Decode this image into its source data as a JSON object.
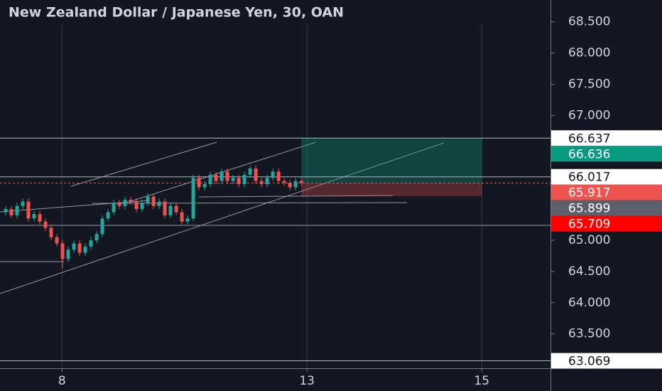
{
  "chart_data": {
    "type": "candlestick",
    "title": "New Zealand Dollar / Japanese Yen, 30, OAN",
    "x": [
      1,
      2,
      3,
      4,
      5,
      6,
      7,
      8,
      9,
      10,
      11,
      12,
      13,
      14,
      15,
      16,
      17,
      18,
      19,
      20,
      21,
      22,
      23,
      24,
      25,
      26,
      27,
      28,
      29,
      30,
      31,
      32,
      33,
      34,
      35,
      36,
      37,
      38,
      39,
      40,
      41,
      42,
      43,
      44,
      45,
      46,
      47,
      48,
      49,
      50,
      51,
      52,
      53
    ],
    "open": [
      65.45,
      65.5,
      65.4,
      65.55,
      65.62,
      65.35,
      65.42,
      65.3,
      65.2,
      65.05,
      64.95,
      64.7,
      64.85,
      64.95,
      64.8,
      64.9,
      65.0,
      65.1,
      65.35,
      65.45,
      65.6,
      65.55,
      65.65,
      65.62,
      65.5,
      65.6,
      65.7,
      65.55,
      65.62,
      65.4,
      65.55,
      65.45,
      65.3,
      65.35,
      66.0,
      65.85,
      65.9,
      66.05,
      65.95,
      66.1,
      65.95,
      66.0,
      65.9,
      66.05,
      66.15,
      65.95,
      65.9,
      66.0,
      66.1,
      65.95,
      65.92,
      65.85,
      65.95
    ],
    "high": [
      65.55,
      65.55,
      65.6,
      65.67,
      65.67,
      65.47,
      65.47,
      65.35,
      65.25,
      65.1,
      65.0,
      64.9,
      65.0,
      65.0,
      64.95,
      65.05,
      65.15,
      65.4,
      65.5,
      65.65,
      65.65,
      65.7,
      65.7,
      65.67,
      65.65,
      65.75,
      65.75,
      65.67,
      65.67,
      65.6,
      65.6,
      65.5,
      65.4,
      66.05,
      66.05,
      65.95,
      66.1,
      66.1,
      66.15,
      66.15,
      66.05,
      66.05,
      66.1,
      66.2,
      66.2,
      66.0,
      66.05,
      66.15,
      66.15,
      66.0,
      65.97,
      66.0,
      66.0
    ],
    "low": [
      65.4,
      65.35,
      65.35,
      65.5,
      65.3,
      65.3,
      65.25,
      65.15,
      65.0,
      64.9,
      64.55,
      64.65,
      64.8,
      64.75,
      64.75,
      64.85,
      64.95,
      65.05,
      65.3,
      65.4,
      65.5,
      65.5,
      65.57,
      65.45,
      65.45,
      65.55,
      65.5,
      65.5,
      65.35,
      65.35,
      65.4,
      65.25,
      65.25,
      65.3,
      65.8,
      65.8,
      65.85,
      65.9,
      65.9,
      65.9,
      65.9,
      65.85,
      65.85,
      66.0,
      65.9,
      65.85,
      65.85,
      65.95,
      65.9,
      65.87,
      65.8,
      65.8,
      65.867
    ],
    "close": [
      65.5,
      65.4,
      65.55,
      65.62,
      65.35,
      65.42,
      65.3,
      65.2,
      65.05,
      64.95,
      64.7,
      64.85,
      64.95,
      64.8,
      64.9,
      65.0,
      65.1,
      65.35,
      65.45,
      65.6,
      65.55,
      65.65,
      65.62,
      65.5,
      65.6,
      65.7,
      65.55,
      65.62,
      65.4,
      65.55,
      65.45,
      65.3,
      65.35,
      66.0,
      65.85,
      65.9,
      66.05,
      65.95,
      66.1,
      65.95,
      66.0,
      65.9,
      66.05,
      66.15,
      65.95,
      65.9,
      66.0,
      66.1,
      65.95,
      65.92,
      65.85,
      65.95,
      65.917
    ],
    "up_color": "#26a69a",
    "down_color": "#ef5350",
    "xlim": [
      0,
      96.9
    ],
    "xticks": [
      {
        "value": 10.9,
        "label": "8"
      },
      {
        "value": 54,
        "label": "13"
      },
      {
        "value": 84.75,
        "label": "15"
      }
    ],
    "ylim": [
      62.95,
      68.85
    ],
    "yticks": [
      {
        "value": 63.5,
        "label": "63.500"
      },
      {
        "value": 64,
        "label": "64.000"
      },
      {
        "value": 64.5,
        "label": "64.500"
      },
      {
        "value": 65,
        "label": "65.000"
      },
      {
        "value": 67,
        "label": "67.000"
      },
      {
        "value": 67.5,
        "label": "67.500"
      },
      {
        "value": 68,
        "label": "68.000"
      },
      {
        "value": 68.5,
        "label": "68.500"
      }
    ],
    "grid": "x",
    "price_labels": [
      {
        "value": 66.637,
        "bg": "#ffffff",
        "fg": "#131722"
      },
      {
        "value": 66.636,
        "bg": "#089981",
        "fg": "#ffffff"
      },
      {
        "value": 66.017,
        "bg": "#ffffff",
        "fg": "#131722"
      },
      {
        "value": 65.917,
        "bg": "#ef5350",
        "fg": "#ffffff"
      },
      {
        "value": 65.899,
        "bg": "#5d606b",
        "fg": "#ffffff"
      },
      {
        "value": 65.709,
        "bg": "#ff0000",
        "fg": "#ffffff"
      },
      {
        "value": 63.069,
        "bg": "#ffffff",
        "fg": "#131722"
      }
    ]
  }
}
